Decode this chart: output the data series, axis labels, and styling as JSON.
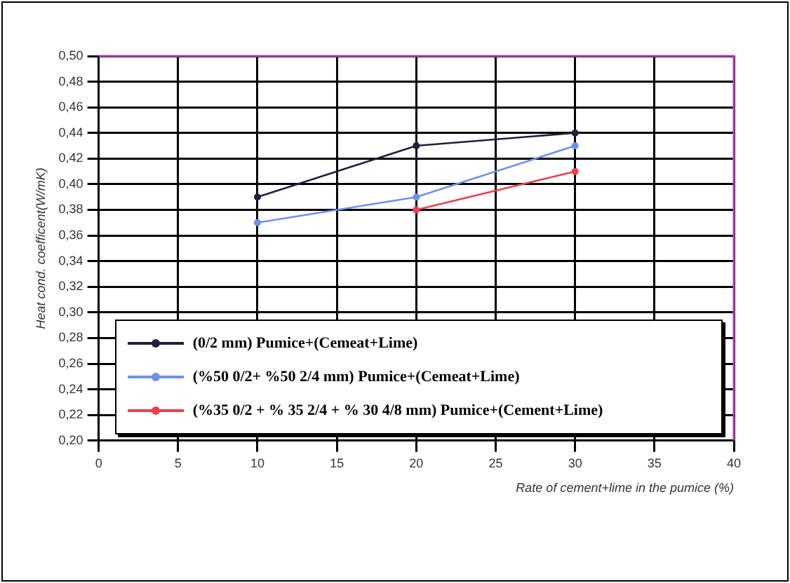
{
  "chart_data": {
    "type": "line",
    "xlabel": "Rate of cement+lime in the pumice (%)",
    "ylabel": "Heat cond. coefficent(W/mK)",
    "x": [
      10,
      20,
      30
    ],
    "series": [
      {
        "name": "(0/2 mm) Pumice+(Cemeat+Lime)",
        "color": "#1f1f3f",
        "values": [
          0.39,
          0.43,
          0.44
        ]
      },
      {
        "name": "(%50 0/2+ %50 2/4 mm) Pumice+(Cemeat+Lime)",
        "color": "#6f8fef",
        "values": [
          0.37,
          0.39,
          0.43
        ]
      },
      {
        "name": "(%35 0/2 + % 35 2/4 + % 30 4/8 mm) Pumice+(Cement+Lime)",
        "color": "#ef3f4f",
        "x": [
          20,
          30
        ],
        "values": [
          0.38,
          0.41
        ]
      }
    ],
    "xlim": [
      0,
      40
    ],
    "xticks": [
      0,
      5,
      10,
      15,
      20,
      25,
      30,
      35,
      40
    ],
    "ylim": [
      0.2,
      0.5
    ],
    "yticks": [
      {
        "value": 0.2,
        "label": "0,20"
      },
      {
        "value": 0.22,
        "label": "0,22"
      },
      {
        "value": 0.24,
        "label": "0,24"
      },
      {
        "value": 0.26,
        "label": "0,26"
      },
      {
        "value": 0.28,
        "label": "0,28"
      },
      {
        "value": 0.3,
        "label": "0,30"
      },
      {
        "value": 0.32,
        "label": "0,32"
      },
      {
        "value": 0.34,
        "label": "0,34"
      },
      {
        "value": 0.36,
        "label": "0,36"
      },
      {
        "value": 0.38,
        "label": "0,38"
      },
      {
        "value": 0.4,
        "label": "0,40"
      },
      {
        "value": 0.42,
        "label": "0,42"
      },
      {
        "value": 0.44,
        "label": "0,44"
      },
      {
        "value": 0.46,
        "label": "0,46"
      },
      {
        "value": 0.48,
        "label": "0,48"
      },
      {
        "value": 0.5,
        "label": "0,50"
      }
    ],
    "grid": true,
    "legend": "bottom",
    "marker": "circle",
    "line_style": "solid"
  }
}
